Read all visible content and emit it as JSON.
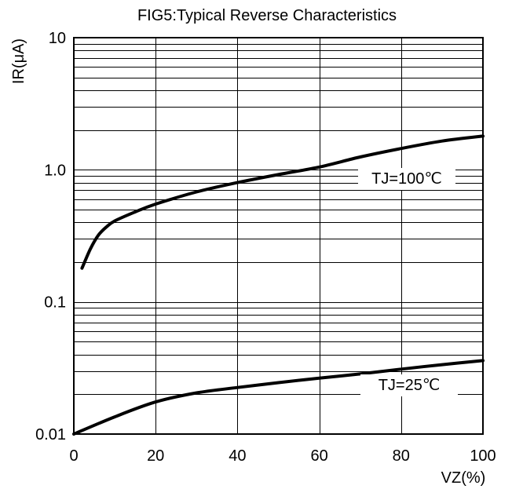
{
  "chart_data": {
    "type": "line",
    "title": "FIG5:Typical Reverse Characteristics",
    "xlabel": "VZ(%)",
    "ylabel": "IR(μA)",
    "xlim": [
      0,
      100
    ],
    "ylim": [
      0.01,
      10
    ],
    "yscale": "log",
    "grid": true,
    "x_ticks": [
      0,
      20,
      40,
      60,
      80,
      100
    ],
    "x_tick_labels": [
      "0",
      "20",
      "40",
      "60",
      "80",
      "100"
    ],
    "y_ticks": [
      0.01,
      0.1,
      1.0,
      10
    ],
    "y_tick_labels": [
      "0.01",
      "0.1",
      "1.0",
      "10"
    ],
    "series": [
      {
        "name": "TJ=100℃",
        "x": [
          2,
          4,
          6,
          8,
          10,
          15,
          20,
          30,
          40,
          50,
          60,
          70,
          80,
          90,
          100
        ],
        "y": [
          0.18,
          0.25,
          0.32,
          0.37,
          0.41,
          0.48,
          0.55,
          0.68,
          0.8,
          0.92,
          1.05,
          1.25,
          1.45,
          1.65,
          1.8
        ]
      },
      {
        "name": "TJ=25℃",
        "x": [
          0,
          10,
          20,
          30,
          40,
          50,
          60,
          70,
          80,
          90,
          100
        ],
        "y": [
          0.01,
          0.0135,
          0.0175,
          0.0205,
          0.0225,
          0.0245,
          0.0265,
          0.0285,
          0.031,
          0.0335,
          0.036
        ]
      }
    ]
  }
}
